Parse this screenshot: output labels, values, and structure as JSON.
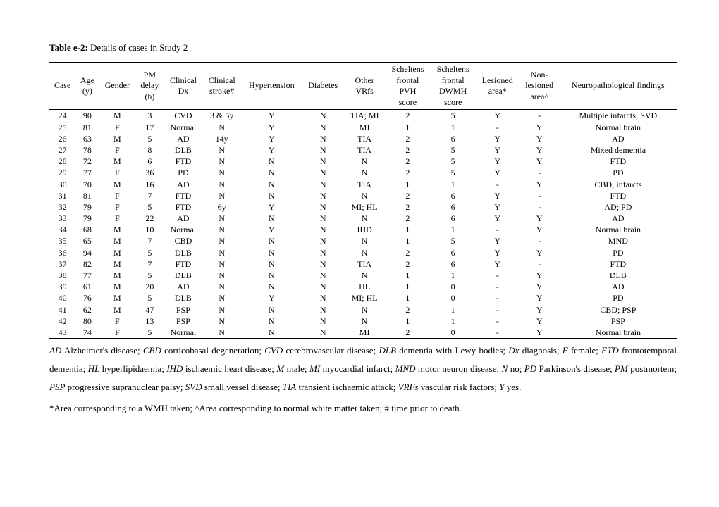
{
  "title": {
    "label": "Table e-2:",
    "text": " Details of cases in Study 2"
  },
  "columns": [
    "Case",
    "Age\n(y)",
    "Gender",
    "PM\ndelay\n(h)",
    "Clinical\nDx",
    "Clinical\nstroke#",
    "Hypertension",
    "Diabetes",
    "Other\nVRfs",
    "Scheltens\nfrontal\nPVH\nscore",
    "Scheltens\nfrontal\nDWMH\nscore",
    "Lesioned\narea*",
    "Non-\nlesioned\narea^",
    "Neuropathological findings"
  ],
  "rows": [
    [
      "24",
      "90",
      "M",
      "3",
      "CVD",
      "3 & 5y",
      "Y",
      "N",
      "TIA; MI",
      "2",
      "5",
      "Y",
      "-",
      "Multiple infarcts; SVD"
    ],
    [
      "25",
      "81",
      "F",
      "17",
      "Normal",
      "N",
      "Y",
      "N",
      "MI",
      "1",
      "1",
      "-",
      "Y",
      "Normal brain"
    ],
    [
      "26",
      "63",
      "M",
      "5",
      "AD",
      "14y",
      "Y",
      "N",
      "TIA",
      "2",
      "6",
      "Y",
      "Y",
      "AD"
    ],
    [
      "27",
      "78",
      "F",
      "8",
      "DLB",
      "N",
      "Y",
      "N",
      "TIA",
      "2",
      "5",
      "Y",
      "Y",
      "Mixed dementia"
    ],
    [
      "28",
      "72",
      "M",
      "6",
      "FTD",
      "N",
      "N",
      "N",
      "N",
      "2",
      "5",
      "Y",
      "Y",
      "FTD"
    ],
    [
      "29",
      "77",
      "F",
      "36",
      "PD",
      "N",
      "N",
      "N",
      "N",
      "2",
      "5",
      "Y",
      "-",
      "PD"
    ],
    [
      "30",
      "70",
      "M",
      "16",
      "AD",
      "N",
      "N",
      "N",
      "TIA",
      "1",
      "1",
      "-",
      "Y",
      "CBD; infarcts"
    ],
    [
      "31",
      "81",
      "F",
      "7",
      "FTD",
      "N",
      "N",
      "N",
      "N",
      "2",
      "6",
      "Y",
      "-",
      "FTD"
    ],
    [
      "32",
      "79",
      "F",
      "5",
      "FTD",
      "6y",
      "Y",
      "N",
      "MI; HL",
      "2",
      "6",
      "Y",
      "-",
      "AD; PD"
    ],
    [
      "33",
      "79",
      "F",
      "22",
      "AD",
      "N",
      "N",
      "N",
      "N",
      "2",
      "6",
      "Y",
      "Y",
      "AD"
    ],
    [
      "34",
      "68",
      "M",
      "10",
      "Normal",
      "N",
      "Y",
      "N",
      "IHD",
      "1",
      "1",
      "-",
      "Y",
      "Normal brain"
    ],
    [
      "35",
      "65",
      "M",
      "7",
      "CBD",
      "N",
      "N",
      "N",
      "N",
      "1",
      "5",
      "Y",
      "-",
      "MND"
    ],
    [
      "36",
      "94",
      "M",
      "5",
      "DLB",
      "N",
      "N",
      "N",
      "N",
      "2",
      "6",
      "Y",
      "Y",
      "PD"
    ],
    [
      "37",
      "82",
      "M",
      "7",
      "FTD",
      "N",
      "N",
      "N",
      "TIA",
      "2",
      "6",
      "Y",
      "-",
      "FTD"
    ],
    [
      "38",
      "77",
      "M",
      "5",
      "DLB",
      "N",
      "N",
      "N",
      "N",
      "1",
      "1",
      "-",
      "Y",
      "DLB"
    ],
    [
      "39",
      "61",
      "M",
      "20",
      "AD",
      "N",
      "N",
      "N",
      "HL",
      "1",
      "0",
      "-",
      "Y",
      "AD"
    ],
    [
      "40",
      "76",
      "M",
      "5",
      "DLB",
      "N",
      "Y",
      "N",
      "MI; HL",
      "1",
      "0",
      "-",
      "Y",
      "PD"
    ],
    [
      "41",
      "62",
      "M",
      "47",
      "PSP",
      "N",
      "N",
      "N",
      "N",
      "2",
      "1",
      "-",
      "Y",
      "CBD; PSP"
    ],
    [
      "42",
      "80",
      "F",
      "13",
      "PSP",
      "N",
      "N",
      "N",
      "N",
      "1",
      "1",
      "-",
      "Y",
      "PSP"
    ],
    [
      "43",
      "74",
      "F",
      "5",
      "Normal",
      "N",
      "N",
      "N",
      "MI",
      "2",
      "0",
      "-",
      "Y",
      "Normal brain"
    ]
  ],
  "legend": [
    {
      "i": "AD",
      "t": " Alzheimer's disease; "
    },
    {
      "i": "CBD",
      "t": " corticobasal degeneration; "
    },
    {
      "i": "CVD",
      "t": " cerebrovascular disease; "
    },
    {
      "i": "DLB",
      "t": " dementia with Lewy bodies; "
    },
    {
      "i": "Dx",
      "t": " diagnosis; "
    },
    {
      "i": "F",
      "t": " female; "
    },
    {
      "i": "FTD",
      "t": " frontotemporal dementia; "
    },
    {
      "i": "HL",
      "t": " hyperlipidaemia; "
    },
    {
      "i": "IHD",
      "t": " ischaemic heart disease; "
    },
    {
      "i": "M",
      "t": " male; "
    },
    {
      "i": "MI",
      "t": " myocardial infarct; "
    },
    {
      "i": "MND",
      "t": " motor neuron disease; "
    },
    {
      "i": "N",
      "t": " no; "
    },
    {
      "i": "PD",
      "t": " Parkinson's disease; "
    },
    {
      "i": "PM",
      "t": " postmortem; "
    },
    {
      "i": "PSP",
      "t": " progressive supranuclear palsy; "
    },
    {
      "i": "SVD",
      "t": " small vessel disease; "
    },
    {
      "i": "TIA",
      "t": " transient ischaemic attack; "
    },
    {
      "i": "VRFs",
      "t": " vascular risk factors; "
    },
    {
      "i": "Y",
      "t": " yes."
    }
  ],
  "footnote": "*Area corresponding to a WMH taken;  ^Area corresponding to normal white matter taken; # time prior to death."
}
